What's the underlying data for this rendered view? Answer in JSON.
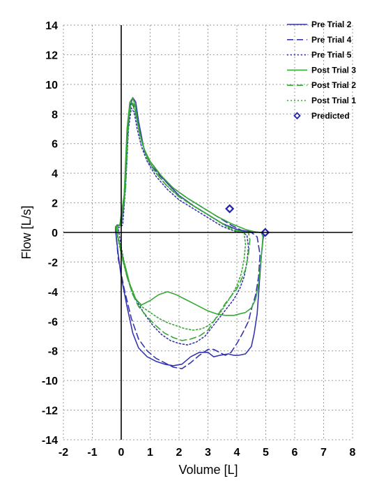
{
  "chart_data": {
    "type": "line",
    "xlabel": "Volume [L]",
    "ylabel": "Flow [L/s]",
    "xlim": [
      -2,
      8
    ],
    "ylim": [
      -14,
      14
    ],
    "x_ticks": [
      -2,
      -1,
      0,
      1,
      2,
      3,
      4,
      5,
      6,
      7,
      8
    ],
    "y_ticks": [
      -14,
      -12,
      -10,
      -8,
      -6,
      -4,
      -2,
      0,
      2,
      4,
      6,
      8,
      10,
      12,
      14
    ],
    "grid": true,
    "legend_position": "top-right",
    "colors": {
      "pre": "#3535b0",
      "post": "#36a836",
      "predicted": "#2222aa"
    },
    "series": [
      {
        "name": "Pre Trial 2",
        "group": "pre",
        "dash": "solid",
        "x": [
          -0.2,
          -0.15,
          -0.1,
          0.0,
          0.1,
          0.2,
          0.3,
          0.4,
          0.5,
          0.6,
          0.8,
          1.0,
          1.3,
          1.6,
          2.0,
          2.5,
          3.0,
          3.5,
          4.0,
          4.3,
          4.6,
          4.8,
          4.9,
          4.95,
          4.9,
          4.85,
          4.8,
          4.75,
          4.7,
          4.6,
          4.5,
          4.3,
          4.05,
          3.9,
          3.7,
          3.4,
          3.2,
          3.0,
          2.7,
          2.4,
          2.1,
          1.8,
          1.5,
          1.2,
          0.9,
          0.6,
          0.4,
          0.2,
          0.0,
          -0.1,
          -0.2
        ],
        "y": [
          0.2,
          0.5,
          0.5,
          0.5,
          2.0,
          6.0,
          8.5,
          9.1,
          8.8,
          7.5,
          5.5,
          4.8,
          4.0,
          3.3,
          2.5,
          1.8,
          1.2,
          0.6,
          0.2,
          0.1,
          0.05,
          0.0,
          0.0,
          0.0,
          -0.5,
          -1.5,
          -2.8,
          -4.2,
          -5.5,
          -6.8,
          -7.7,
          -8.2,
          -8.3,
          -8.3,
          -8.2,
          -8.3,
          -8.4,
          -8.1,
          -8.1,
          -8.4,
          -8.9,
          -9.0,
          -8.9,
          -8.7,
          -8.4,
          -7.8,
          -6.8,
          -5.0,
          -3.0,
          -1.5,
          0.2
        ]
      },
      {
        "name": "Pre Trial 4",
        "group": "pre",
        "dash": "dashed",
        "x": [
          -0.2,
          -0.05,
          0.1,
          0.2,
          0.3,
          0.4,
          0.5,
          0.6,
          0.8,
          1.0,
          1.4,
          1.8,
          2.3,
          2.8,
          3.3,
          3.8,
          4.2,
          4.5,
          4.7,
          4.8,
          4.75,
          4.65,
          4.5,
          4.4,
          4.2,
          4.0,
          3.8,
          3.6,
          3.4,
          3.2,
          3.0,
          2.7,
          2.4,
          2.1,
          1.8,
          1.5,
          1.2,
          0.9,
          0.6,
          0.35,
          0.1,
          -0.1,
          -0.2
        ],
        "y": [
          0.3,
          0.5,
          2.5,
          6.5,
          8.6,
          8.7,
          8.0,
          7.0,
          5.5,
          4.6,
          3.7,
          3.0,
          2.3,
          1.7,
          1.1,
          0.5,
          0.1,
          0.0,
          -0.3,
          -1.5,
          -3.0,
          -4.2,
          -5.2,
          -6.0,
          -6.8,
          -7.5,
          -8.1,
          -8.3,
          -8.1,
          -7.9,
          -7.9,
          -8.3,
          -8.8,
          -9.2,
          -9.1,
          -8.8,
          -8.5,
          -8.0,
          -7.2,
          -5.8,
          -3.8,
          -1.8,
          0.3
        ]
      },
      {
        "name": "Pre Trial 5",
        "group": "pre",
        "dash": "dotted",
        "x": [
          -0.1,
          0.05,
          0.15,
          0.25,
          0.35,
          0.45,
          0.55,
          0.7,
          0.9,
          1.2,
          1.6,
          2.0,
          2.5,
          3.0,
          3.5,
          3.9,
          4.2,
          4.35,
          4.4,
          4.35,
          4.25,
          4.1,
          3.9,
          3.7,
          3.5,
          3.3,
          3.1,
          2.9,
          2.6,
          2.3,
          2.0,
          1.7,
          1.4,
          1.1,
          0.8,
          0.5,
          0.2,
          0.0,
          -0.1
        ],
        "y": [
          0.3,
          0.5,
          3.0,
          7.0,
          8.4,
          8.1,
          7.0,
          5.8,
          4.8,
          3.8,
          2.9,
          2.2,
          1.6,
          1.0,
          0.4,
          0.1,
          0.0,
          -0.2,
          -1.0,
          -2.0,
          -3.0,
          -3.8,
          -4.5,
          -5.0,
          -5.5,
          -6.0,
          -6.5,
          -7.0,
          -7.4,
          -7.6,
          -7.5,
          -7.3,
          -6.9,
          -6.3,
          -5.5,
          -4.5,
          -3.0,
          -1.0,
          0.3
        ]
      },
      {
        "name": "Post Trial 3",
        "group": "post",
        "dash": "solid",
        "x": [
          -0.2,
          -0.05,
          0.1,
          0.2,
          0.3,
          0.4,
          0.5,
          0.6,
          0.8,
          1.0,
          1.4,
          1.8,
          2.3,
          2.8,
          3.3,
          3.8,
          4.3,
          4.6,
          4.85,
          4.9,
          4.85,
          4.8,
          4.75,
          4.65,
          4.5,
          4.3,
          4.1,
          3.9,
          3.6,
          3.3,
          3.0,
          2.6,
          2.2,
          1.9,
          1.6,
          1.3,
          1.0,
          0.7,
          0.5,
          0.3,
          0.1,
          -0.05,
          -0.2
        ],
        "y": [
          0.4,
          0.5,
          2.5,
          7.0,
          8.8,
          9.1,
          8.4,
          7.0,
          5.6,
          4.8,
          3.8,
          3.0,
          2.3,
          1.7,
          1.1,
          0.6,
          0.2,
          0.05,
          0.0,
          -0.3,
          -1.5,
          -2.5,
          -3.5,
          -4.5,
          -5.1,
          -5.4,
          -5.5,
          -5.6,
          -5.6,
          -5.5,
          -5.3,
          -4.9,
          -4.5,
          -4.2,
          -4.0,
          -4.2,
          -4.6,
          -4.9,
          -4.5,
          -3.5,
          -2.0,
          -0.8,
          0.4
        ]
      },
      {
        "name": "Post Trial 2",
        "group": "post",
        "dash": "dashed",
        "x": [
          -0.15,
          0.0,
          0.15,
          0.25,
          0.35,
          0.45,
          0.55,
          0.7,
          0.9,
          1.2,
          1.6,
          2.0,
          2.5,
          3.0,
          3.5,
          3.9,
          4.2,
          4.4,
          4.45,
          4.4,
          4.3,
          4.15,
          4.0,
          3.8,
          3.6,
          3.4,
          3.2,
          3.0,
          2.7,
          2.4,
          2.1,
          1.8,
          1.5,
          1.2,
          0.9,
          0.6,
          0.4,
          0.2,
          0.05,
          -0.1,
          -0.15
        ],
        "y": [
          0.4,
          0.5,
          3.0,
          7.5,
          8.8,
          8.6,
          7.6,
          6.2,
          5.0,
          4.0,
          3.1,
          2.4,
          1.8,
          1.2,
          0.6,
          0.2,
          0.05,
          0.0,
          -0.5,
          -1.5,
          -2.5,
          -3.2,
          -3.8,
          -4.3,
          -4.8,
          -5.4,
          -6.0,
          -6.6,
          -7.0,
          -7.2,
          -7.3,
          -7.1,
          -6.8,
          -6.3,
          -5.7,
          -5.0,
          -4.2,
          -3.0,
          -1.8,
          -0.5,
          0.4
        ]
      },
      {
        "name": "Post Trial 1",
        "group": "post",
        "dash": "dotted",
        "x": [
          -0.2,
          -0.05,
          0.1,
          0.2,
          0.3,
          0.4,
          0.5,
          0.65,
          0.85,
          1.1,
          1.5,
          1.9,
          2.4,
          2.9,
          3.4,
          3.8,
          4.1,
          4.25,
          4.3,
          4.25,
          4.15,
          4.0,
          3.8,
          3.6,
          3.4,
          3.2,
          3.0,
          2.8,
          2.5,
          2.2,
          1.9,
          1.6,
          1.3,
          1.0,
          0.7,
          0.4,
          0.2,
          0.0,
          -0.2
        ],
        "y": [
          0.4,
          0.5,
          2.0,
          6.5,
          8.4,
          8.6,
          8.0,
          6.5,
          5.3,
          4.3,
          3.3,
          2.6,
          1.9,
          1.3,
          0.7,
          0.2,
          0.05,
          0.0,
          -0.8,
          -1.8,
          -2.8,
          -3.6,
          -4.3,
          -4.9,
          -5.5,
          -6.0,
          -6.3,
          -6.5,
          -6.6,
          -6.5,
          -6.3,
          -6.1,
          -5.8,
          -5.4,
          -5.0,
          -4.2,
          -3.0,
          -1.5,
          0.4
        ]
      }
    ],
    "predicted": {
      "name": "Predicted",
      "points": [
        {
          "x": 3.75,
          "y": 1.6
        },
        {
          "x": 4.98,
          "y": 0.0
        }
      ]
    }
  }
}
